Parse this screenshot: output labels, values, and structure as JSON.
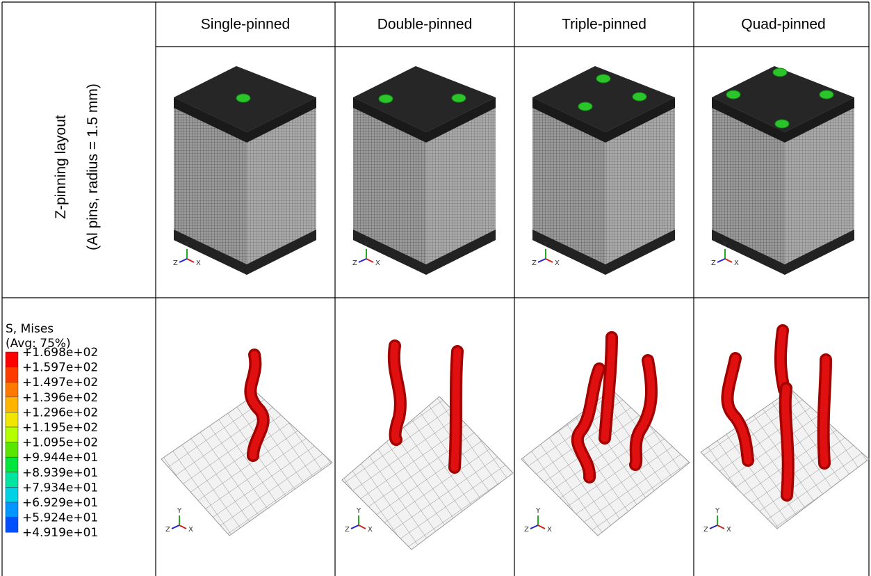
{
  "table": {
    "columns": [
      "Single-pinned",
      "Double-pinned",
      "Triple-pinned",
      "Quad-pinned"
    ],
    "row_label": [
      "Z-pinning layout",
      "(Al pins, radius = 1.5 mm)"
    ],
    "legend": {
      "title": [
        "S, Mises",
        "(Avg: 75%)"
      ],
      "values": [
        "+1.698e+02",
        "+1.597e+02",
        "+1.497e+02",
        "+1.396e+02",
        "+1.296e+02",
        "+1.195e+02",
        "+1.095e+02",
        "+9.944e+01",
        "+8.939e+01",
        "+7.934e+01",
        "+6.929e+01",
        "+5.924e+01",
        "+4.919e+01"
      ]
    },
    "triad": [
      "Y",
      "Z",
      "X"
    ]
  }
}
